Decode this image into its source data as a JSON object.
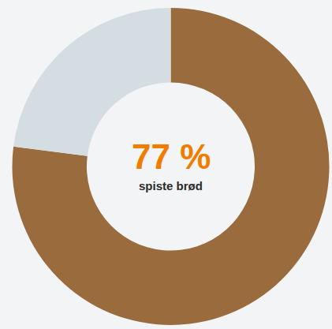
{
  "chart_data": {
    "type": "pie",
    "categories": [
      "spiste brød",
      null
    ],
    "values": [
      77,
      23
    ],
    "value_labels": [
      "77 %",
      null
    ],
    "colors": [
      "#9a6b3c",
      "#d4dde2"
    ]
  }
}
